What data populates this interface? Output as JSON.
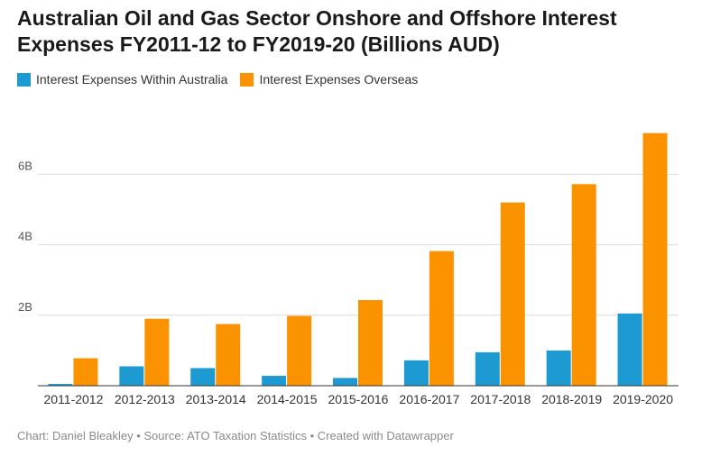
{
  "chart_data": {
    "type": "bar",
    "title": "Australian Oil and Gas Sector Onshore and Offshore Interest Expenses FY2011-12 to FY2019-20 (Billions AUD)",
    "categories": [
      "2011-2012",
      "2012-2013",
      "2013-2014",
      "2014-2015",
      "2015-2016",
      "2016-2017",
      "2017-2018",
      "2018-2019",
      "2019-2020"
    ],
    "series": [
      {
        "name": "Interest Expenses Within Australia",
        "color": "#1d9ad1",
        "values": [
          0.05,
          0.55,
          0.5,
          0.28,
          0.22,
          0.72,
          0.95,
          1.0,
          2.05
        ]
      },
      {
        "name": "Interest Expenses Overseas",
        "color": "#fb9300",
        "values": [
          0.78,
          1.9,
          1.75,
          1.98,
          2.43,
          3.82,
          5.2,
          5.72,
          7.17
        ]
      }
    ],
    "yticks": [
      {
        "value": 2,
        "label": "2B"
      },
      {
        "value": 4,
        "label": "4B"
      },
      {
        "value": 6,
        "label": "6B"
      }
    ],
    "ylim": [
      0,
      7.5
    ],
    "xlabel": "",
    "ylabel": "",
    "grid": true,
    "legend_position": "top-left"
  },
  "footer": "Chart: Daniel Bleakley • Source: ATO Taxation Statistics • Created with Datawrapper"
}
